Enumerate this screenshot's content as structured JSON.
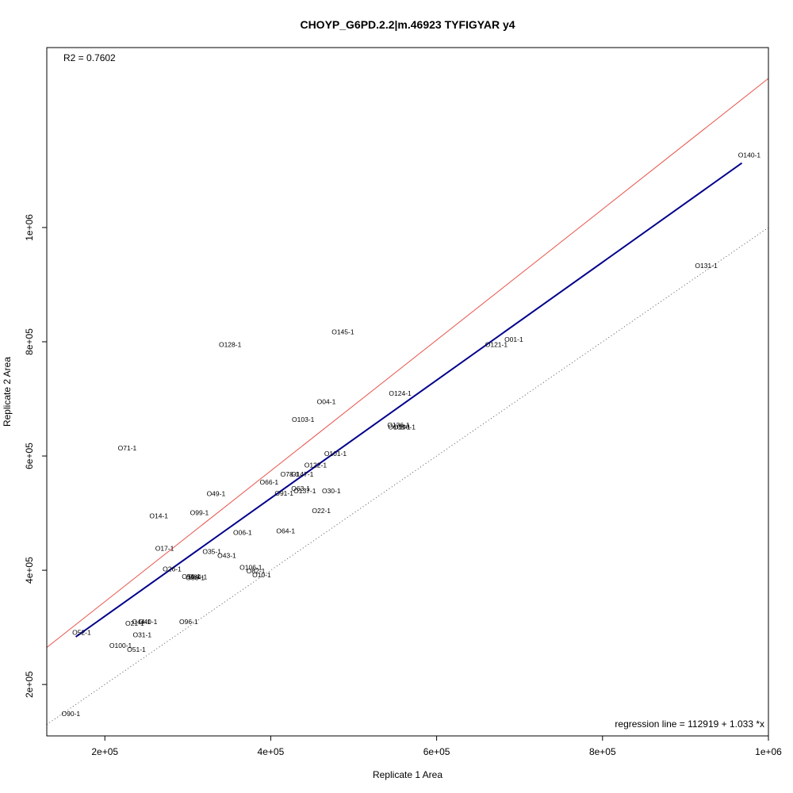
{
  "chart_data": {
    "type": "scatter",
    "title": "CHOYP_G6PD.2.2|m.46923 TYFIGYAR y4",
    "xlabel": "Replicate 1 Area",
    "ylabel": "Replicate 2 Area",
    "xlim": [
      130000,
      1000000
    ],
    "ylim": [
      110000,
      1315000
    ],
    "xticks": [
      {
        "value": 200000,
        "label": "2e+05"
      },
      {
        "value": 400000,
        "label": "4e+05"
      },
      {
        "value": 600000,
        "label": "6e+05"
      },
      {
        "value": 800000,
        "label": "8e+05"
      },
      {
        "value": 1000000,
        "label": "1e+06"
      }
    ],
    "yticks": [
      {
        "value": 200000,
        "label": "2e+05"
      },
      {
        "value": 400000,
        "label": "4e+05"
      },
      {
        "value": 600000,
        "label": "6e+05"
      },
      {
        "value": 800000,
        "label": "8e+05"
      },
      {
        "value": 1000000,
        "label": "1e+06"
      }
    ],
    "r2_text": "R2 = 0.7602",
    "regression_text": "regression line = 112919 + 1.033 *x",
    "regression": {
      "intercept": 112919,
      "slope": 1.033,
      "x_range": [
        165000,
        968000
      ],
      "color": "#00008b"
    },
    "fit_line": {
      "intercept": 116000,
      "slope": 1.145,
      "color": "#e8534a"
    },
    "identity_line": {
      "intercept": 0,
      "slope": 1,
      "color": "#555555"
    },
    "points": [
      {
        "label": "O140-1",
        "x": 977000,
        "y": 1127000
      },
      {
        "label": "O131-1",
        "x": 925000,
        "y": 933000
      },
      {
        "label": "O145-1",
        "x": 487000,
        "y": 817000
      },
      {
        "label": "O128-1",
        "x": 351000,
        "y": 795000
      },
      {
        "label": "O01-1",
        "x": 693000,
        "y": 804000
      },
      {
        "label": "O121-1",
        "x": 672000,
        "y": 795000
      },
      {
        "label": "O124-1",
        "x": 556000,
        "y": 710000
      },
      {
        "label": "O04-1",
        "x": 467000,
        "y": 695000
      },
      {
        "label": "O103-1",
        "x": 439000,
        "y": 664000
      },
      {
        "label": "O136-1",
        "x": 554000,
        "y": 654000
      },
      {
        "label": "O108-1",
        "x": 555000,
        "y": 651000
      },
      {
        "label": "O190-1",
        "x": 561000,
        "y": 651000
      },
      {
        "label": "O71-1",
        "x": 227000,
        "y": 614000
      },
      {
        "label": "O101-1",
        "x": 478000,
        "y": 604000
      },
      {
        "label": "O122-1",
        "x": 454000,
        "y": 584000
      },
      {
        "label": "O78-1",
        "x": 423000,
        "y": 568000
      },
      {
        "label": "O147-1",
        "x": 438000,
        "y": 568000
      },
      {
        "label": "O66-1",
        "x": 398000,
        "y": 554000
      },
      {
        "label": "O63-1",
        "x": 436000,
        "y": 543000
      },
      {
        "label": "O91-1",
        "x": 416000,
        "y": 535000
      },
      {
        "label": "O137-1",
        "x": 441000,
        "y": 539000
      },
      {
        "label": "O30-1",
        "x": 473000,
        "y": 539000
      },
      {
        "label": "O49-1",
        "x": 334000,
        "y": 534000
      },
      {
        "label": "O22-1",
        "x": 461000,
        "y": 504000
      },
      {
        "label": "O99-1",
        "x": 314000,
        "y": 501000
      },
      {
        "label": "O14-1",
        "x": 265000,
        "y": 495000
      },
      {
        "label": "O06-1",
        "x": 366000,
        "y": 466000
      },
      {
        "label": "O64-1",
        "x": 418000,
        "y": 469000
      },
      {
        "label": "O17-1",
        "x": 272000,
        "y": 438000
      },
      {
        "label": "O35-1",
        "x": 329000,
        "y": 433000
      },
      {
        "label": "O43-1",
        "x": 347000,
        "y": 426000
      },
      {
        "label": "O106-1",
        "x": 376000,
        "y": 405000
      },
      {
        "label": "O26-1",
        "x": 281000,
        "y": 402000
      },
      {
        "label": "O82-1",
        "x": 382000,
        "y": 399000
      },
      {
        "label": "O10-1",
        "x": 389000,
        "y": 392000
      },
      {
        "label": "O56-1",
        "x": 304000,
        "y": 389000
      },
      {
        "label": "O58-1",
        "x": 309000,
        "y": 387000
      },
      {
        "label": "O84-1",
        "x": 312000,
        "y": 388000
      },
      {
        "label": "O52-1",
        "x": 172000,
        "y": 291000
      },
      {
        "label": "O96-1",
        "x": 301000,
        "y": 310000
      },
      {
        "label": "O40-1",
        "x": 252000,
        "y": 310000
      },
      {
        "label": "O44-1",
        "x": 244000,
        "y": 310000
      },
      {
        "label": "O21-1",
        "x": 236000,
        "y": 307000
      },
      {
        "label": "O31-1",
        "x": 245000,
        "y": 287000
      },
      {
        "label": "O100-1",
        "x": 219000,
        "y": 268000
      },
      {
        "label": "O51-1",
        "x": 238000,
        "y": 261000
      },
      {
        "label": "O90-1",
        "x": 159000,
        "y": 149000
      }
    ]
  }
}
